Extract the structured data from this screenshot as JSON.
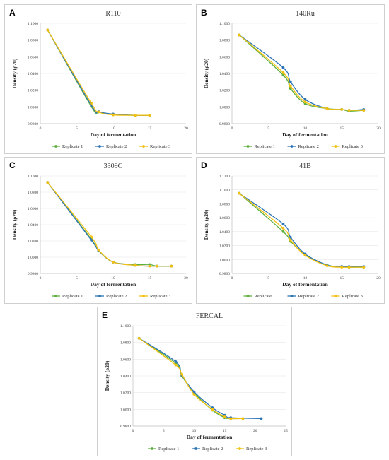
{
  "chart_data": [
    {
      "type": "line",
      "panel_letter": "A",
      "title": "R110",
      "xlabel": "Day of fermentation",
      "ylabel": "Density (ρ20)",
      "xlim": [
        0,
        20
      ],
      "ylim": [
        0.98,
        1.1
      ],
      "xticks": [
        0,
        5,
        10,
        15,
        20
      ],
      "yticks": [
        0.98,
        1.0,
        1.02,
        1.04,
        1.06,
        1.08,
        1.1
      ],
      "x_tick_labels": [
        "0",
        "5",
        "10",
        "15",
        "20"
      ],
      "y_tick_labels": [
        "0.9800",
        "1.0000",
        "1.0200",
        "1.0400",
        "1.0600",
        "1.0800",
        "1.1000"
      ],
      "legend_position": "bottom",
      "series": [
        {
          "name": "Replicate 1",
          "color": "#5db040",
          "x": [
            1,
            7,
            8,
            10,
            13,
            15
          ],
          "y": [
            1.092,
            1.0005,
            0.994,
            0.991,
            0.99,
            0.99
          ]
        },
        {
          "name": "Replicate 2",
          "color": "#2e75b6",
          "x": [
            1,
            7,
            8,
            10,
            13,
            15
          ],
          "y": [
            1.092,
            1.002,
            0.9945,
            0.9915,
            0.99,
            0.99
          ]
        },
        {
          "name": "Replicate 3",
          "color": "#f2c10f",
          "x": [
            1,
            7,
            8,
            10,
            13,
            15
          ],
          "y": [
            1.092,
            1.0045,
            0.994,
            0.9905,
            0.99,
            0.99
          ]
        }
      ]
    },
    {
      "type": "line",
      "panel_letter": "B",
      "title": "140Ru",
      "xlabel": "Day of fermentation",
      "ylabel": "Density (ρ20)",
      "xlim": [
        0,
        20
      ],
      "ylim": [
        0.98,
        1.1
      ],
      "xticks": [
        0,
        5,
        10,
        15,
        20
      ],
      "yticks": [
        0.98,
        1.0,
        1.02,
        1.04,
        1.06,
        1.08,
        1.1
      ],
      "x_tick_labels": [
        "0",
        "5",
        "10",
        "15",
        "20"
      ],
      "y_tick_labels": [
        "0.9800",
        "1.0000",
        "1.0200",
        "1.0400",
        "1.0600",
        "1.0800",
        "1.1000"
      ],
      "legend_position": "bottom",
      "series": [
        {
          "name": "Replicate 1",
          "color": "#5db040",
          "x": [
            1,
            7,
            8,
            10,
            13,
            15,
            16,
            18
          ],
          "y": [
            1.086,
            1.038,
            1.022,
            1.004,
            0.998,
            0.997,
            0.995,
            0.996
          ]
        },
        {
          "name": "Replicate 2",
          "color": "#2e75b6",
          "x": [
            1,
            7,
            8,
            10,
            13,
            15,
            16,
            18
          ],
          "y": [
            1.086,
            1.047,
            1.03,
            1.009,
            0.998,
            0.997,
            0.996,
            0.997
          ]
        },
        {
          "name": "Replicate 3",
          "color": "#f2c10f",
          "x": [
            1,
            7,
            8,
            10,
            13,
            15,
            16,
            18
          ],
          "y": [
            1.086,
            1.041,
            1.025,
            1.006,
            0.998,
            0.997,
            0.996,
            0.996
          ]
        }
      ]
    },
    {
      "type": "line",
      "panel_letter": "C",
      "title": "3309C",
      "xlabel": "Day of fermentation",
      "ylabel": "Density (ρ20)",
      "xlim": [
        0,
        20
      ],
      "ylim": [
        0.98,
        1.1
      ],
      "xticks": [
        0,
        5,
        10,
        15,
        20
      ],
      "yticks": [
        0.98,
        1.0,
        1.02,
        1.04,
        1.06,
        1.08,
        1.1
      ],
      "x_tick_labels": [
        "0",
        "5",
        "10",
        "15",
        "20"
      ],
      "y_tick_labels": [
        "0.9800",
        "1.0000",
        "1.0200",
        "1.0400",
        "1.0600",
        "1.0800",
        "1.1000"
      ],
      "legend_position": "bottom",
      "series": [
        {
          "name": "Replicate 1",
          "color": "#5db040",
          "x": [
            1,
            7,
            8,
            10,
            13,
            15,
            16,
            18
          ],
          "y": [
            1.092,
            1.022,
            1.008,
            0.994,
            0.991,
            0.991,
            0.989,
            0.989
          ]
        },
        {
          "name": "Replicate 2",
          "color": "#2e75b6",
          "x": [
            1,
            7,
            8,
            10,
            13,
            15,
            16,
            18
          ],
          "y": [
            1.092,
            1.021,
            1.008,
            0.994,
            0.99,
            0.989,
            0.989,
            0.989
          ]
        },
        {
          "name": "Replicate 3",
          "color": "#f2c10f",
          "x": [
            1,
            7,
            8,
            10,
            13,
            15,
            16,
            18
          ],
          "y": [
            1.092,
            1.025,
            1.009,
            0.994,
            0.99,
            0.989,
            0.989,
            0.989
          ]
        }
      ]
    },
    {
      "type": "line",
      "panel_letter": "D",
      "title": "41B",
      "xlabel": "Day of fermentation",
      "ylabel": "Density (ρ20)",
      "xlim": [
        0,
        20
      ],
      "ylim": [
        0.98,
        1.12
      ],
      "xticks": [
        0,
        5,
        10,
        15,
        20
      ],
      "yticks": [
        0.98,
        1.0,
        1.02,
        1.04,
        1.06,
        1.08,
        1.1,
        1.12
      ],
      "x_tick_labels": [
        "0",
        "5",
        "10",
        "15",
        "20"
      ],
      "y_tick_labels": [
        "0.9800",
        "1.0000",
        "1.0200",
        "1.0400",
        "1.0600",
        "1.0800",
        "1.1000",
        "1.1200"
      ],
      "legend_position": "bottom",
      "series": [
        {
          "name": "Replicate 1",
          "color": "#5db040",
          "x": [
            1,
            7,
            8,
            10,
            13,
            15,
            16,
            18
          ],
          "y": [
            1.095,
            1.04,
            1.026,
            1.007,
            0.992,
            0.99,
            0.989,
            0.989
          ]
        },
        {
          "name": "Replicate 2",
          "color": "#2e75b6",
          "x": [
            1,
            7,
            8,
            10,
            13,
            15,
            16,
            18
          ],
          "y": [
            1.095,
            1.051,
            1.032,
            1.008,
            0.992,
            0.99,
            0.99,
            0.99
          ]
        },
        {
          "name": "Replicate 3",
          "color": "#f2c10f",
          "x": [
            1,
            7,
            8,
            10,
            13,
            15,
            16,
            18
          ],
          "y": [
            1.095,
            1.045,
            1.028,
            1.006,
            0.991,
            0.989,
            0.989,
            0.989
          ]
        }
      ]
    },
    {
      "type": "line",
      "panel_letter": "E",
      "title": "FERCAL",
      "xlabel": "Day of fermentation",
      "ylabel": "Density (ρ20)",
      "xlim": [
        0,
        25
      ],
      "ylim": [
        0.98,
        1.1
      ],
      "xticks": [
        0,
        5,
        10,
        15,
        20,
        25
      ],
      "yticks": [
        0.98,
        1.0,
        1.02,
        1.04,
        1.06,
        1.08,
        1.1
      ],
      "x_tick_labels": [
        "0",
        "5",
        "10",
        "15",
        "20",
        "25"
      ],
      "y_tick_labels": [
        "0.9800",
        "1.0000",
        "1.0200",
        "1.0400",
        "1.0600",
        "1.0800",
        "1.1000"
      ],
      "legend_position": "bottom",
      "series": [
        {
          "name": "Replicate 1",
          "color": "#5db040",
          "x": [
            1,
            7,
            8,
            10,
            13,
            15,
            16,
            18
          ],
          "y": [
            1.085,
            1.055,
            1.04,
            1.02,
            0.999,
            0.99,
            0.989,
            0.989
          ]
        },
        {
          "name": "Replicate 2",
          "color": "#2e75b6",
          "x": [
            1,
            7,
            8,
            10,
            13,
            15,
            16,
            21
          ],
          "y": [
            1.085,
            1.057,
            1.041,
            1.021,
            1.002,
            0.993,
            0.99,
            0.989
          ]
        },
        {
          "name": "Replicate 3",
          "color": "#f2c10f",
          "x": [
            1,
            7,
            8,
            10,
            13,
            15,
            16,
            18
          ],
          "y": [
            1.085,
            1.053,
            1.042,
            1.018,
            1.0,
            0.991,
            0.989,
            0.989
          ]
        }
      ]
    }
  ]
}
